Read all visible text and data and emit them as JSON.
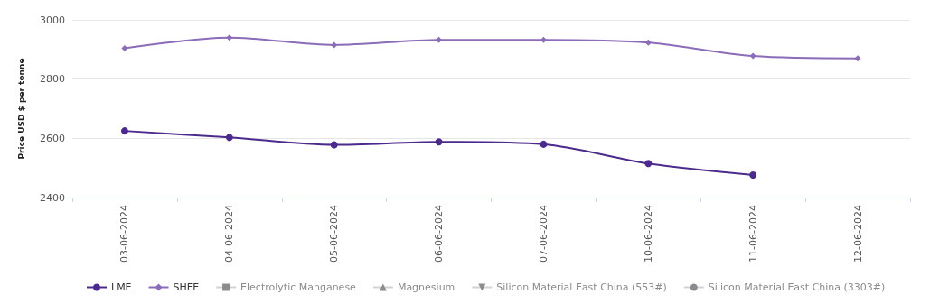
{
  "chart_data": {
    "type": "line",
    "ylabel": "Price USD $ per tonne",
    "categories": [
      "03-06-2024",
      "04-06-2024",
      "05-06-2024",
      "06-06-2024",
      "07-06-2024",
      "10-06-2024",
      "11-06-2024",
      "12-06-2024"
    ],
    "series": [
      {
        "name": "LME",
        "color": "#4b2a8c",
        "marker": "circle",
        "values": [
          2625,
          2603,
          2578,
          2588,
          2580,
          2515,
          2476,
          null
        ]
      },
      {
        "name": "SHFE",
        "color": "#8a6cb8",
        "marker": "diamond",
        "values": [
          2904,
          2940,
          2915,
          2932,
          2932,
          2923,
          2878,
          2870
        ]
      },
      {
        "name": "Electrolytic Manganese",
        "color": "#cccccc",
        "marker": "square",
        "values": [
          null,
          null,
          null,
          null,
          null,
          null,
          null,
          null
        ]
      },
      {
        "name": "Magnesium",
        "color": "#cccccc",
        "marker": "triangle",
        "values": [
          null,
          null,
          null,
          null,
          null,
          null,
          null,
          null
        ]
      },
      {
        "name": "Silicon Material East China (553#)",
        "color": "#cccccc",
        "marker": "triangle-down",
        "values": [
          null,
          null,
          null,
          null,
          null,
          null,
          null,
          null
        ]
      },
      {
        "name": "Silicon Material East China (3303#)",
        "color": "#cccccc",
        "marker": "circle",
        "values": [
          null,
          null,
          null,
          null,
          null,
          null,
          null,
          null
        ]
      }
    ],
    "ylim": [
      2400,
      3000
    ],
    "yticks": [
      2400,
      2600,
      2800,
      3000
    ],
    "grid": "y",
    "legend": "bottom left"
  }
}
